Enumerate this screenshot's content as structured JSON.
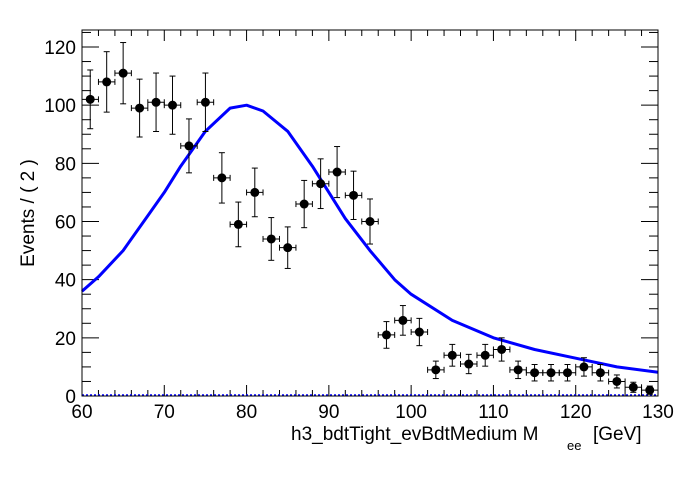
{
  "chart_data": {
    "type": "scatter",
    "title": "",
    "xlabel": "h3_bdtTight_evBdtMedium  M",
    "xlabel_subscript": "ee",
    "xlabel_unit": "[GeV]",
    "ylabel": "Events / ( 2 )",
    "xlim": [
      60,
      130
    ],
    "ylim": [
      0,
      126
    ],
    "x_ticks": [
      "60",
      "70",
      "80",
      "90",
      "100",
      "110",
      "120",
      "130"
    ],
    "y_ticks": [
      "0",
      "20",
      "40",
      "60",
      "80",
      "100",
      "120"
    ],
    "grid": false,
    "bin_width": 2,
    "series": [
      {
        "kind": "data-points-with-errors",
        "color": "#000000",
        "x": [
          61,
          63,
          65,
          67,
          69,
          71,
          73,
          75,
          77,
          79,
          81,
          83,
          85,
          87,
          89,
          91,
          93,
          95,
          97,
          99,
          101,
          103,
          105,
          107,
          109,
          111,
          113,
          115,
          117,
          119,
          121,
          123,
          125,
          127,
          129
        ],
        "y": [
          102,
          108,
          111,
          99,
          101,
          100,
          86,
          101,
          75,
          59,
          70,
          54,
          51,
          66,
          73,
          77,
          69,
          60,
          21,
          26,
          22,
          9,
          14,
          11,
          14,
          16,
          9,
          8,
          8,
          8,
          10,
          8,
          5,
          3,
          2
        ]
      },
      {
        "kind": "fit-curve",
        "color": "#0000ff",
        "x": [
          60,
          62,
          65,
          68,
          70,
          72,
          75,
          78,
          80,
          82,
          85,
          88,
          90,
          92,
          95,
          98,
          100,
          105,
          110,
          115,
          120,
          125,
          130
        ],
        "y": [
          36,
          41,
          50,
          62,
          70,
          79,
          91,
          99,
          100,
          98,
          91,
          79,
          70,
          61,
          50,
          40,
          35,
          26,
          20,
          16,
          13,
          10,
          8.2
        ]
      }
    ]
  }
}
